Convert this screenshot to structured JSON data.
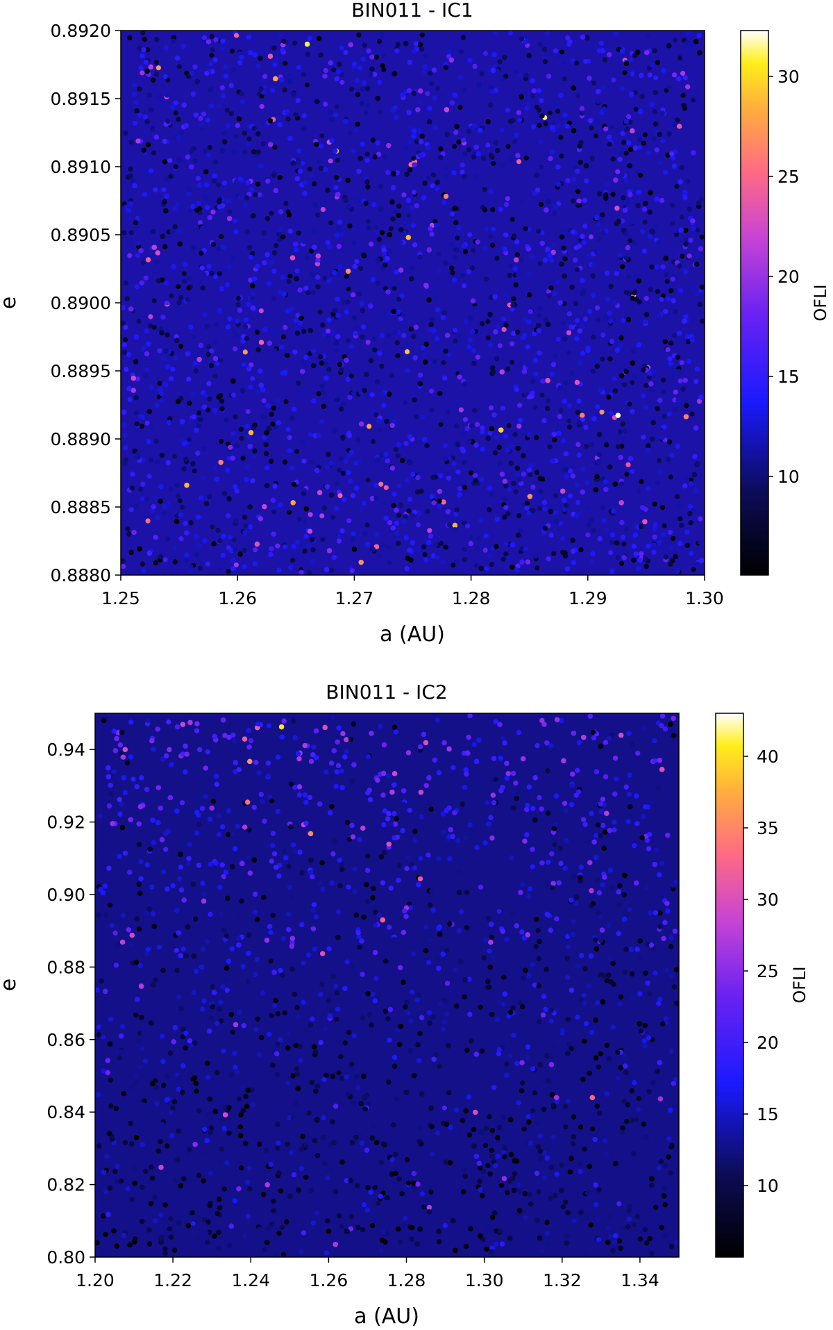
{
  "chart_data": [
    {
      "type": "scatter",
      "title": "BIN011 - IC1",
      "xlabel": "a (AU)",
      "ylabel": "e",
      "xlim": [
        1.25,
        1.3
      ],
      "ylim": [
        0.888,
        0.892
      ],
      "xticks": [
        "1.25",
        "1.26",
        "1.27",
        "1.28",
        "1.29",
        "1.30"
      ],
      "yticks": [
        "0.8880",
        "0.8885",
        "0.8890",
        "0.8895",
        "0.8900",
        "0.8905",
        "0.8910",
        "0.8915",
        "0.8920"
      ],
      "colorbar": {
        "label": "OFLI",
        "range": [
          5,
          32.3
        ],
        "ticks": [
          "10",
          "15",
          "20",
          "25",
          "30"
        ],
        "colormap": "gnuplot2"
      },
      "value_distribution": {
        "typical_ofli": 12,
        "spread": 3,
        "vertical_gradient": false
      },
      "grid": false
    },
    {
      "type": "scatter",
      "title": "BIN011 - IC2",
      "xlabel": "a (AU)",
      "ylabel": "e",
      "xlim": [
        1.2,
        1.35
      ],
      "ylim": [
        0.8,
        0.95
      ],
      "xticks": [
        "1.20",
        "1.22",
        "1.24",
        "1.26",
        "1.28",
        "1.30",
        "1.32",
        "1.34"
      ],
      "yticks": [
        "0.80",
        "0.82",
        "0.84",
        "0.86",
        "0.88",
        "0.90",
        "0.92",
        "0.94"
      ],
      "colorbar": {
        "label": "OFLI",
        "range": [
          5,
          43
        ],
        "ticks": [
          "10",
          "15",
          "20",
          "25",
          "30",
          "35",
          "40"
        ],
        "colormap": "gnuplot2"
      },
      "value_distribution": {
        "typical_ofli_at_ymin": 10,
        "typical_ofli_at_ymax": 21,
        "spread": 4,
        "vertical_gradient": true
      },
      "grid": false
    }
  ]
}
